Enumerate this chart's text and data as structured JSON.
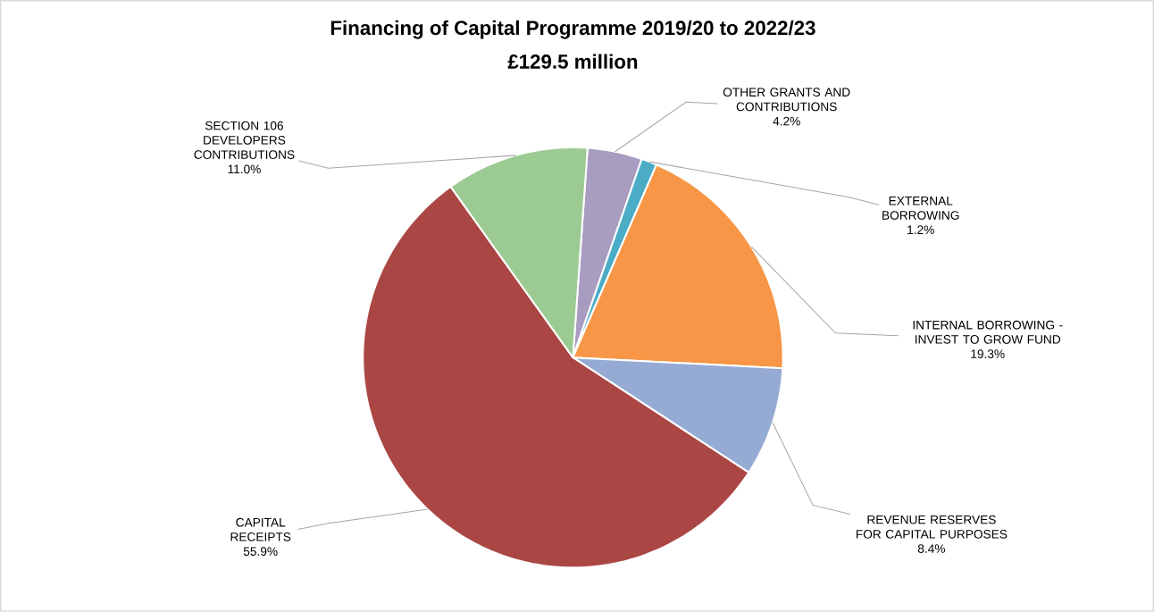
{
  "chart_data": {
    "type": "pie",
    "title": "Financing of Capital Programme 2019/20 to 2022/23",
    "subtitle": "£129.5 million",
    "categories": [
      "OTHER GRANTS AND CONTRIBUTIONS",
      "EXTERNAL BORROWING",
      "INTERNAL BORROWING - INVEST TO GROW FUND",
      "REVENUE RESERVES FOR CAPITAL PURPOSES",
      "CAPITAL RECEIPTS",
      "SECTION 106 DEVELOPERS CONTRIBUTIONS"
    ],
    "values": [
      4.2,
      1.2,
      19.3,
      8.4,
      55.9,
      11.0
    ],
    "value_labels": [
      "4.2%",
      "1.2%",
      "19.3%",
      "8.4%",
      "55.9%",
      "11.0%"
    ],
    "colors": [
      "#a89cc0",
      "#4bacc6",
      "#f79646",
      "#95abd3",
      "#aa4644",
      "#9bcb92"
    ]
  }
}
